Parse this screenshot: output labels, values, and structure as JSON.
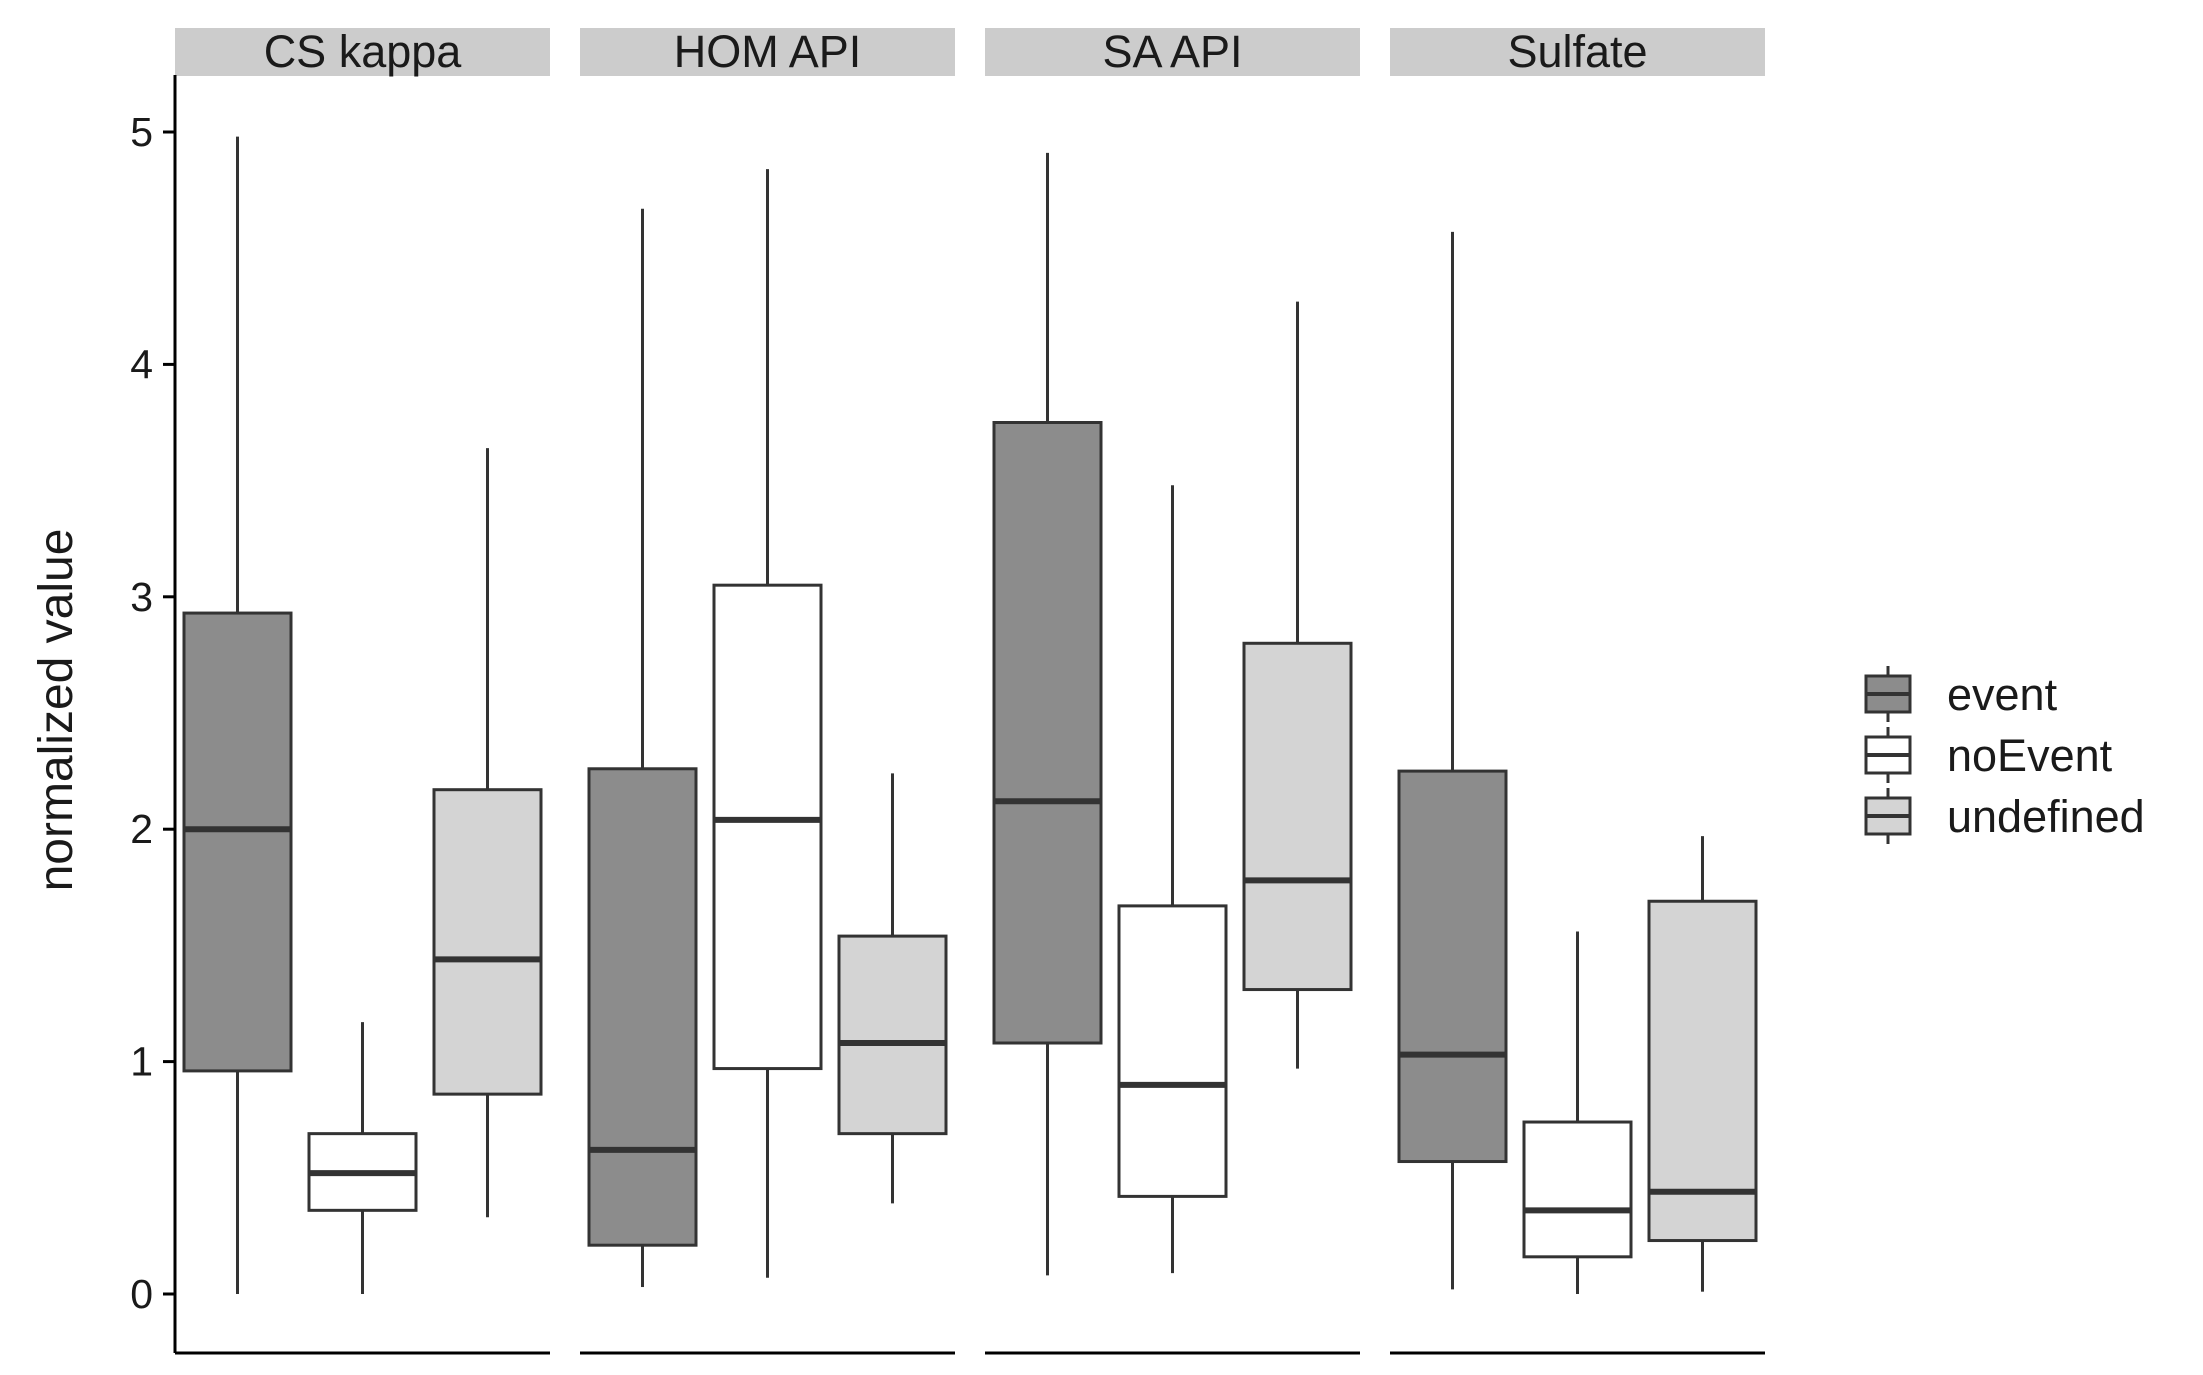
{
  "chart_data": {
    "type": "boxplot",
    "ylabel": "normalized value",
    "ylim": [
      -0.25,
      5.25
    ],
    "yticks": [
      0,
      1,
      2,
      3,
      4,
      5
    ],
    "groups": [
      "event",
      "noEvent",
      "undefined"
    ],
    "legend": {
      "position": "right",
      "entries": [
        {
          "label": "event",
          "color": "#8c8c8c"
        },
        {
          "label": "noEvent",
          "color": "#ffffff"
        },
        {
          "label": "undefined",
          "color": "#d4d4d4"
        }
      ]
    },
    "colors": {
      "event": "#8c8c8c",
      "noEvent": "#ffffff",
      "undefined": "#d4d4d4",
      "stroke": "#333333",
      "strip": "#cccccc"
    },
    "panels": [
      {
        "name": "CS_kappa",
        "boxes": [
          {
            "group": "event",
            "min": 0.0,
            "q1": 0.96,
            "median": 2.0,
            "q3": 2.93,
            "max": 4.98
          },
          {
            "group": "noEvent",
            "min": 0.0,
            "q1": 0.36,
            "median": 0.52,
            "q3": 0.69,
            "max": 1.17
          },
          {
            "group": "undefined",
            "min": 0.33,
            "q1": 0.86,
            "median": 1.44,
            "q3": 2.17,
            "max": 3.64
          }
        ]
      },
      {
        "name": "HOM_API",
        "boxes": [
          {
            "group": "event",
            "min": 0.03,
            "q1": 0.21,
            "median": 0.62,
            "q3": 2.26,
            "max": 4.67
          },
          {
            "group": "noEvent",
            "min": 0.07,
            "q1": 0.97,
            "median": 2.04,
            "q3": 3.05,
            "max": 4.84
          },
          {
            "group": "undefined",
            "min": 0.39,
            "q1": 0.69,
            "median": 1.08,
            "q3": 1.54,
            "max": 2.24
          }
        ]
      },
      {
        "name": "SA_API",
        "boxes": [
          {
            "group": "event",
            "min": 0.08,
            "q1": 1.08,
            "median": 2.12,
            "q3": 3.75,
            "max": 4.91
          },
          {
            "group": "noEvent",
            "min": 0.09,
            "q1": 0.42,
            "median": 0.9,
            "q3": 1.67,
            "max": 3.48
          },
          {
            "group": "undefined",
            "min": 0.97,
            "q1": 1.31,
            "median": 1.78,
            "q3": 2.8,
            "max": 4.27
          }
        ]
      },
      {
        "name": "Sulfate",
        "boxes": [
          {
            "group": "event",
            "min": 0.02,
            "q1": 0.57,
            "median": 1.03,
            "q3": 2.25,
            "max": 4.57
          },
          {
            "group": "noEvent",
            "min": 0.0,
            "q1": 0.16,
            "median": 0.36,
            "q3": 0.74,
            "max": 1.56
          },
          {
            "group": "undefined",
            "min": 0.01,
            "q1": 0.23,
            "median": 0.44,
            "q3": 1.69,
            "max": 1.97
          }
        ]
      }
    ]
  }
}
